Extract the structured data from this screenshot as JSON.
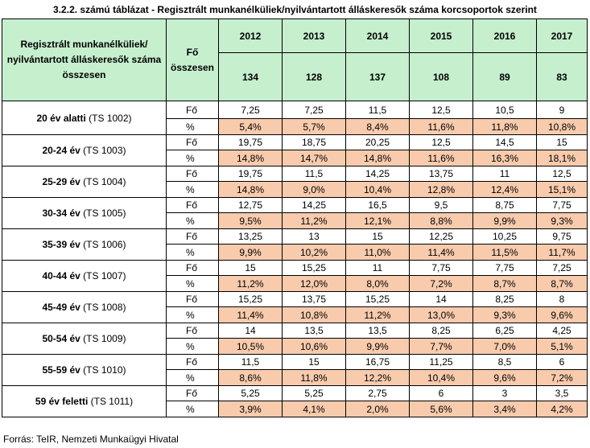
{
  "title": "3.2.2. számú táblázat - Regisztrált munkanélküliek/nyilvántartott álláskeresők száma korcsoportok szerint",
  "header": {
    "row_label": "Regisztrált munkanélküliek/ nyilvántartott álláskeresők száma összesen",
    "unit_label": "Fő összesen",
    "years": [
      "2012",
      "2013",
      "2014",
      "2015",
      "2016",
      "2017"
    ],
    "totals": [
      "134",
      "128",
      "137",
      "108",
      "89",
      "83"
    ]
  },
  "groups": [
    {
      "name": "20 év alatti",
      "code": "(TS 1002)",
      "fo": [
        "7,25",
        "7,25",
        "11,5",
        "12,5",
        "10,5",
        "9"
      ],
      "pct": [
        "5,4%",
        "5,7%",
        "8,4%",
        "11,6%",
        "11,8%",
        "10,8%"
      ]
    },
    {
      "name": "20-24 év",
      "code": "(TS 1003)",
      "fo": [
        "19,75",
        "18,75",
        "20,25",
        "12,5",
        "14,5",
        "15"
      ],
      "pct": [
        "14,8%",
        "14,7%",
        "14,8%",
        "11,6%",
        "16,3%",
        "18,1%"
      ]
    },
    {
      "name": "25-29 év",
      "code": "(TS 1004)",
      "fo": [
        "19,75",
        "11,5",
        "14,25",
        "13,75",
        "11",
        "12,5"
      ],
      "pct": [
        "14,8%",
        "9,0%",
        "10,4%",
        "12,8%",
        "12,4%",
        "15,1%"
      ]
    },
    {
      "name": "30-34 év",
      "code": "(TS 1005)",
      "fo": [
        "12,75",
        "14,25",
        "16,5",
        "9,5",
        "8,75",
        "7,75"
      ],
      "pct": [
        "9,5%",
        "11,2%",
        "12,1%",
        "8,8%",
        "9,9%",
        "9,3%"
      ]
    },
    {
      "name": "35-39 év",
      "code": "(TS 1006)",
      "fo": [
        "13,25",
        "13",
        "15",
        "12,25",
        "10,25",
        "9,75"
      ],
      "pct": [
        "9,9%",
        "10,2%",
        "11,0%",
        "11,4%",
        "11,5%",
        "11,7%"
      ]
    },
    {
      "name": "40-44 év",
      "code": "(TS 1007)",
      "fo": [
        "15",
        "15,25",
        "11",
        "7,75",
        "7,75",
        "7,25"
      ],
      "pct": [
        "11,2%",
        "12,0%",
        "8,0%",
        "7,2%",
        "8,7%",
        "8,7%"
      ]
    },
    {
      "name": "45-49 év",
      "code": "(TS 1008)",
      "fo": [
        "15,25",
        "13,75",
        "15,25",
        "14",
        "8,25",
        "8"
      ],
      "pct": [
        "11,4%",
        "10,8%",
        "11,2%",
        "13,0%",
        "9,3%",
        "9,6%"
      ]
    },
    {
      "name": "50-54 év",
      "code": "(TS 1009)",
      "fo": [
        "14",
        "13,5",
        "13,5",
        "8,25",
        "6,25",
        "4,25"
      ],
      "pct": [
        "10,5%",
        "10,6%",
        "9,9%",
        "7,7%",
        "7,0%",
        "5,1%"
      ]
    },
    {
      "name": "55-59 év",
      "code": "(TS 1010)",
      "fo": [
        "11,5",
        "15",
        "16,75",
        "11,25",
        "8,5",
        "6"
      ],
      "pct": [
        "8,6%",
        "11,8%",
        "12,2%",
        "10,4%",
        "9,6%",
        "7,2%"
      ]
    },
    {
      "name": "59 év feletti",
      "code": "(TS 1011)",
      "fo": [
        "5,25",
        "5,25",
        "2,75",
        "6",
        "3",
        "3,5"
      ],
      "pct": [
        "3,9%",
        "4,1%",
        "2,0%",
        "5,6%",
        "3,4%",
        "4,2%"
      ]
    }
  ],
  "units": {
    "fo": "Fő",
    "pct": "%"
  },
  "source": "Forrás: TeIR, Nemzeti Munkaügyi Hivatal",
  "colors": {
    "header_bg": "#c6efce",
    "pct_bg": "#f8cbad",
    "border": "#000000"
  }
}
